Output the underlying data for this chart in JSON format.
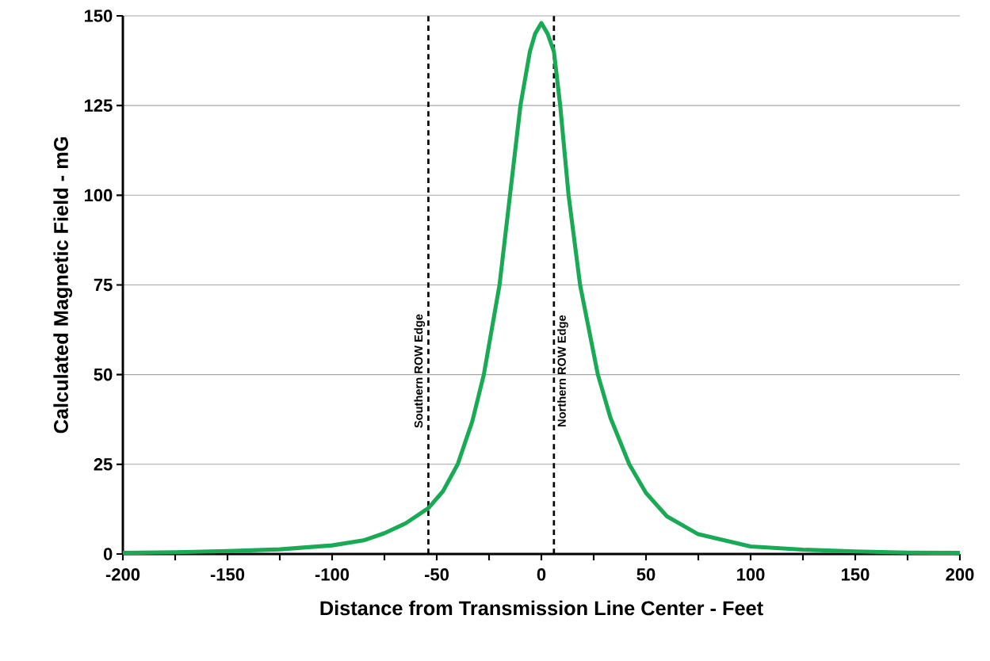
{
  "chart_data": {
    "type": "line",
    "xlabel": "Distance from Transmission Line Center - Feet",
    "ylabel": "Calculated Magnetic Field - mG",
    "x": [
      -200,
      -175,
      -150,
      -125,
      -100,
      -85,
      -75,
      -65,
      -54,
      -47,
      -40,
      -33,
      -27.5,
      -20,
      -15,
      -10,
      -5.5,
      -3,
      0,
      3,
      6,
      9,
      13,
      18.5,
      27,
      33,
      42,
      50,
      60,
      75,
      100,
      125,
      150,
      175,
      200
    ],
    "series": [
      {
        "color": "#1aaa55",
        "values": [
          0.3,
          0.5,
          0.8,
          1.3,
          2.4,
          3.8,
          5.8,
          8.5,
          12.8,
          17.5,
          25,
          37,
          50,
          75,
          100,
          125,
          140,
          145,
          148,
          145,
          140,
          125,
          100,
          75,
          50,
          38,
          25,
          17,
          10.5,
          5.5,
          2.1,
          1.2,
          0.7,
          0.4,
          0.3
        ]
      }
    ],
    "xlim": [
      -200,
      200
    ],
    "xticks": [
      -200,
      {
        "value": -175,
        "label": null
      },
      -150,
      {
        "value": -125,
        "label": null
      },
      -100,
      {
        "value": -75,
        "label": null
      },
      -50,
      {
        "value": -25,
        "label": null
      },
      0,
      {
        "value": 25,
        "label": null
      },
      50,
      {
        "value": 75,
        "label": null
      },
      100,
      {
        "value": 125,
        "label": null
      },
      150,
      {
        "value": 175,
        "label": null
      },
      200
    ],
    "ylim": [
      0,
      150
    ],
    "yticks": [
      0,
      25,
      50,
      75,
      100,
      125,
      150
    ],
    "grid": "y",
    "marker": "none",
    "line_style": "solid",
    "ref_lines": [
      {
        "axis": "x",
        "value": -54,
        "label": "Southern ROW Edge",
        "color": "#000000",
        "line_style": "dashed"
      },
      {
        "axis": "x",
        "value": 6,
        "label": "Northern ROW Edge",
        "color": "#000000",
        "line_style": "dashed"
      }
    ]
  }
}
